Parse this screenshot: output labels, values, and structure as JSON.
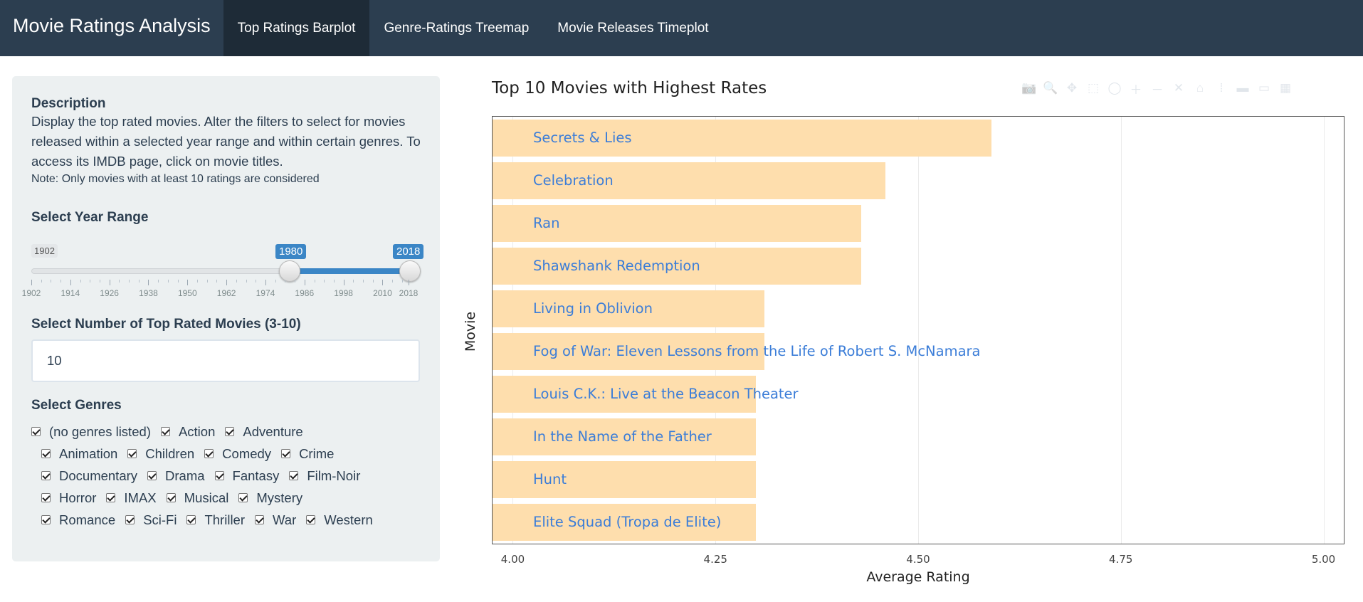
{
  "navbar": {
    "brand": "Movie Ratings Analysis",
    "tabs": [
      {
        "label": "Top Ratings Barplot",
        "active": true
      },
      {
        "label": "Genre-Ratings Treemap",
        "active": false
      },
      {
        "label": "Movie Releases Timeplot",
        "active": false
      }
    ]
  },
  "sidebar": {
    "description_title": "Description",
    "description_text": "Display the top rated movies. Alter the filters to select for movies released within a selected year range and within certain genres. To access its IMDB page, click on movie titles.",
    "note": "Note: Only movies with at least 10 ratings are considered",
    "year_range": {
      "label": "Select Year Range",
      "min": 1902,
      "max": 2018,
      "from": 1980,
      "to": 2018,
      "min_label": "1902",
      "from_label": "1980",
      "to_label": "2018",
      "ticks": [
        "1902",
        "1914",
        "1926",
        "1938",
        "1950",
        "1962",
        "1974",
        "1986",
        "1998",
        "2010",
        "2018"
      ]
    },
    "top_n": {
      "label": "Select Number of Top Rated Movies (3-10)",
      "value": "10"
    },
    "genres": {
      "label": "Select Genres",
      "rows": [
        [
          "(no genres listed)",
          "Action",
          "Adventure"
        ],
        [
          "Animation",
          "Children",
          "Comedy",
          "Crime"
        ],
        [
          "Documentary",
          "Drama",
          "Fantasy",
          "Film-Noir"
        ],
        [
          "Horror",
          "IMAX",
          "Musical",
          "Mystery"
        ],
        [
          "Romance",
          "Sci-Fi",
          "Thriller",
          "War",
          "Western"
        ]
      ]
    }
  },
  "chart_data": {
    "type": "bar",
    "orientation": "horizontal",
    "title": "Top 10 Movies with Highest Rates",
    "xlabel": "Average Rating",
    "ylabel": "Movie",
    "xlim": [
      3.975,
      5.025
    ],
    "x_ticks": [
      "4.00",
      "4.25",
      "4.50",
      "4.75",
      "5.00"
    ],
    "categories": [
      "Secrets & Lies",
      "Celebration",
      "Ran",
      "Shawshank Redemption",
      "Living in Oblivion",
      "Fog of War: Eleven Lessons from the Life of Robert S. McNamara",
      "Louis C.K.: Live at the Beacon Theater",
      "In the Name of the Father",
      "Hunt",
      "Elite Squad (Tropa de Elite)"
    ],
    "values": [
      4.59,
      4.46,
      4.43,
      4.43,
      4.31,
      4.31,
      4.3,
      4.3,
      4.3,
      4.3
    ],
    "bar_color": "#fedead",
    "label_color": "#3b7dd8",
    "grid": true
  },
  "modebar": {
    "icons": [
      "camera-icon",
      "zoom-icon",
      "pan-icon",
      "box-select-icon",
      "lasso-icon",
      "zoom-in-icon",
      "zoom-out-icon",
      "autoscale-icon",
      "reset-axes-icon",
      "spike-lines-icon",
      "hover-closest-icon",
      "hover-compare-icon",
      "plotly-logo-icon"
    ],
    "glyphs": [
      "📷",
      "🔍",
      "✥",
      "⬚",
      "◯",
      "＋",
      "－",
      "✕",
      "⌂",
      "⁞",
      "▬",
      "▭",
      "▦"
    ]
  }
}
